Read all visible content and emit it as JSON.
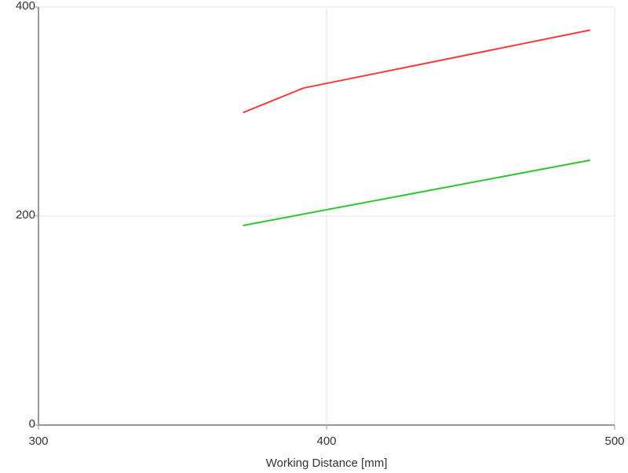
{
  "chart_data": {
    "type": "line",
    "x_label": "Working Distance [mm]",
    "xlim": [
      300,
      500
    ],
    "xticks": [
      300,
      400,
      500
    ],
    "ylim": [
      0,
      400
    ],
    "yticks": [
      0,
      200,
      400
    ],
    "grid": true,
    "series": [
      {
        "color": "#f03c3c",
        "x": [
          371,
          392,
          491.5
        ],
        "values": [
          299,
          322.5,
          378
        ]
      },
      {
        "color": "#2ec52e",
        "x": [
          371,
          491.5
        ],
        "values": [
          191,
          253.5
        ]
      }
    ]
  }
}
